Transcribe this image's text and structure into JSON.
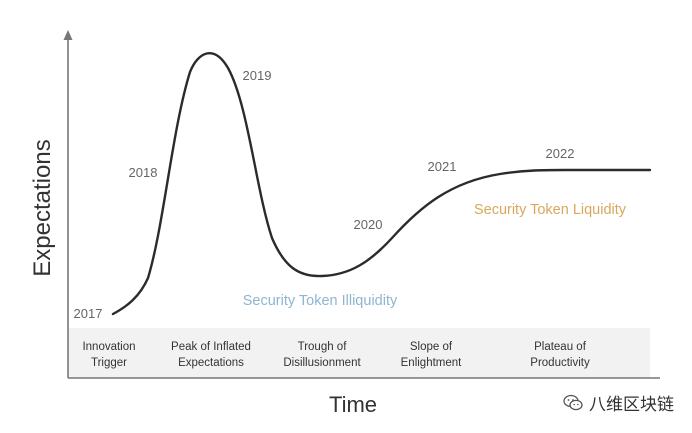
{
  "axes": {
    "y_label": "Expectations",
    "x_label": "Time"
  },
  "phases": [
    {
      "line1": "Innovation",
      "line2": "Trigger"
    },
    {
      "line1": "Peak of Inflated",
      "line2": "Expectations"
    },
    {
      "line1": "Trough of",
      "line2": "Disillusionment"
    },
    {
      "line1": "Slope of",
      "line2": "Enlightment"
    },
    {
      "line1": "Plateau of",
      "line2": "Productivity"
    }
  ],
  "year_labels": [
    "2017",
    "2018",
    "2019",
    "2020",
    "2021",
    "2022"
  ],
  "annotations": {
    "illiquidity": "Security Token Illiquidity",
    "liquidity": "Security Token Liquidity"
  },
  "colors": {
    "curve": "#2b2b2b",
    "axis": "#777777",
    "phase_band": "#f2f2f2",
    "year_text": "#666666",
    "illiquidity": "#8fb5cf",
    "liquidity": "#d9a85c"
  },
  "watermark": {
    "text": "八维区块链",
    "icon": "wechat-icon"
  }
}
